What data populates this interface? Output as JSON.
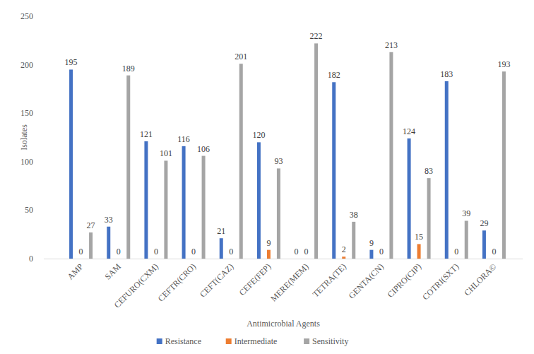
{
  "chart_data": {
    "type": "bar",
    "x_label": "Antimicrobial Agents",
    "y_label": "Isolates",
    "categories": [
      "AMP",
      "SAM",
      "CEFURO(CXM)",
      "CEFTR(CRO)",
      "CEFT(CAZ)",
      "CEFE(FEP)",
      "MERE(MEM)",
      "TETRA(TE)",
      "GENTA(CN)",
      "CIPRO(CIP)",
      "COTRI(SXT)",
      "CHLORA©"
    ],
    "series": [
      {
        "name": "Resistance",
        "color": "#4472c4",
        "values": [
          195,
          33,
          121,
          116,
          21,
          120,
          0,
          182,
          9,
          124,
          183,
          29
        ]
      },
      {
        "name": "Intermediate",
        "color": "#ed7d31",
        "values": [
          0,
          0,
          0,
          0,
          0,
          9,
          0,
          2,
          0,
          15,
          0,
          0
        ]
      },
      {
        "name": "Sensitivity",
        "color": "#a5a5a5",
        "values": [
          27,
          189,
          101,
          106,
          201,
          93,
          222,
          38,
          213,
          83,
          39,
          193
        ]
      }
    ],
    "ylim": [
      0,
      250
    ],
    "yticks": [
      0,
      50,
      100,
      150,
      200,
      250
    ],
    "grid": false,
    "legend": "bottom",
    "data_labels": true
  }
}
